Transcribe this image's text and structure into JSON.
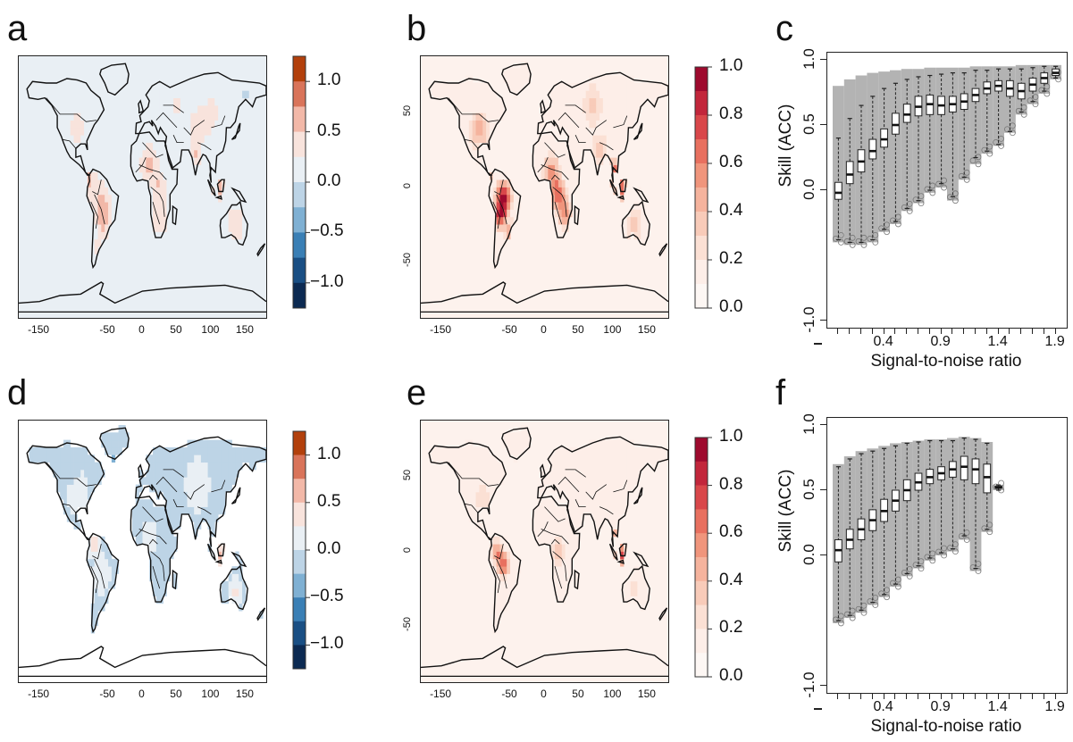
{
  "panels": {
    "a": {
      "letter": "a",
      "type": "map",
      "palette": "diverging",
      "pattern": "a"
    },
    "b": {
      "letter": "b",
      "type": "map",
      "palette": "sequential",
      "pattern": "b"
    },
    "c": {
      "letter": "c",
      "type": "boxplot"
    },
    "d": {
      "letter": "d",
      "type": "map",
      "palette": "diverging",
      "pattern": "d"
    },
    "e": {
      "letter": "e",
      "type": "map",
      "palette": "sequential",
      "pattern": "e"
    },
    "f": {
      "letter": "f",
      "type": "boxplot"
    }
  },
  "map_axes": {
    "lon_ticks": [
      "-150",
      "-50",
      "0",
      "50",
      "100",
      "150"
    ],
    "lat_ticks": [
      "50",
      "0",
      "-50"
    ]
  },
  "colorbars": {
    "diverging": {
      "labels": [
        "1.0",
        "0.5",
        "0.0",
        "−0.5",
        "−1.0"
      ],
      "colors": [
        "#b2400c",
        "#d9745a",
        "#f2b8a8",
        "#f8e3dc",
        "#e9eff4",
        "#bdd4e6",
        "#7fb0d3",
        "#3a7fb5",
        "#1a4f84",
        "#0c2a52"
      ]
    },
    "sequential": {
      "labels": [
        "1.0",
        "0.8",
        "0.6",
        "0.4",
        "0.2",
        "0.0"
      ],
      "colors": [
        "#9e0a2e",
        "#c2263b",
        "#d9474a",
        "#e8705f",
        "#f0957c",
        "#f5b39d",
        "#f8cbb9",
        "#fbe0d4",
        "#fdeee8",
        "#fdf7f4"
      ]
    }
  },
  "chart_data": [
    {
      "type": "boxplot",
      "panel": "c",
      "xlabel": "Signal-to-noise ratio",
      "ylabel": "Skill (ACC)",
      "ylim": [
        -1.0,
        1.0
      ],
      "y_ticks": [
        "1.0",
        "0.5",
        "0.0",
        "-1.0"
      ],
      "x_ticks": [
        "0.4",
        "0.9",
        "1.4",
        "1.9"
      ],
      "x": [
        0.05,
        0.15,
        0.25,
        0.35,
        0.45,
        0.55,
        0.65,
        0.75,
        0.85,
        0.95,
        1.05,
        1.15,
        1.25,
        1.35,
        1.45,
        1.55,
        1.65,
        1.75,
        1.85,
        1.95
      ],
      "q1": [
        -0.07,
        0.05,
        0.14,
        0.24,
        0.33,
        0.43,
        0.52,
        0.57,
        0.58,
        0.58,
        0.6,
        0.62,
        0.68,
        0.74,
        0.76,
        0.72,
        0.7,
        0.76,
        0.82,
        0.88
      ],
      "median": [
        -0.02,
        0.12,
        0.22,
        0.3,
        0.39,
        0.5,
        0.58,
        0.64,
        0.66,
        0.65,
        0.66,
        0.68,
        0.73,
        0.78,
        0.8,
        0.78,
        0.76,
        0.81,
        0.86,
        0.9
      ],
      "q3": [
        0.06,
        0.22,
        0.31,
        0.39,
        0.47,
        0.59,
        0.66,
        0.72,
        0.73,
        0.72,
        0.72,
        0.74,
        0.78,
        0.83,
        0.84,
        0.84,
        0.82,
        0.86,
        0.9,
        0.93
      ],
      "low": [
        -0.38,
        -0.4,
        -0.4,
        -0.38,
        -0.3,
        -0.24,
        -0.14,
        -0.08,
        0.0,
        0.05,
        -0.05,
        0.1,
        0.25,
        0.3,
        0.35,
        0.45,
        0.6,
        0.68,
        0.76,
        0.86
      ],
      "high": [
        0.4,
        0.55,
        0.65,
        0.72,
        0.78,
        0.82,
        0.85,
        0.87,
        0.88,
        0.89,
        0.9,
        0.9,
        0.92,
        0.92,
        0.93,
        0.93,
        0.93,
        0.94,
        0.95,
        0.95
      ],
      "cloud_low": [
        -0.4,
        -0.42,
        -0.42,
        -0.4,
        -0.32,
        -0.26,
        -0.16,
        -0.1,
        -0.02,
        0.02,
        -0.08,
        0.08,
        0.2,
        0.28,
        0.34,
        0.44,
        0.58,
        0.66,
        0.74,
        0.85
      ],
      "cloud_high": [
        0.8,
        0.85,
        0.88,
        0.9,
        0.91,
        0.92,
        0.93,
        0.93,
        0.94,
        0.94,
        0.94,
        0.94,
        0.95,
        0.95,
        0.95,
        0.95,
        0.96,
        0.96,
        0.96,
        0.96
      ]
    },
    {
      "type": "boxplot",
      "panel": "f",
      "xlabel": "Signal-to-noise ratio",
      "ylabel": "Skill (ACC)",
      "ylim": [
        -1.0,
        1.0
      ],
      "y_ticks": [
        "1.0",
        "0.5",
        "0.0",
        "-1.0"
      ],
      "x_ticks": [
        "0.4",
        "0.9",
        "1.4",
        "1.9"
      ],
      "x": [
        0.05,
        0.15,
        0.25,
        0.35,
        0.45,
        0.55,
        0.65,
        0.75,
        0.85,
        0.95,
        1.05,
        1.15,
        1.25,
        1.35,
        1.45
      ],
      "q1": [
        -0.05,
        0.05,
        0.12,
        0.19,
        0.26,
        0.34,
        0.42,
        0.5,
        0.55,
        0.58,
        0.6,
        0.58,
        0.55,
        0.48,
        0.52
      ],
      "median": [
        0.04,
        0.12,
        0.2,
        0.27,
        0.34,
        0.42,
        0.5,
        0.56,
        0.6,
        0.63,
        0.66,
        0.68,
        0.66,
        0.6,
        0.52
      ],
      "q3": [
        0.12,
        0.2,
        0.28,
        0.35,
        0.43,
        0.5,
        0.58,
        0.63,
        0.66,
        0.68,
        0.72,
        0.76,
        0.74,
        0.7,
        0.53
      ],
      "low": [
        -0.5,
        -0.46,
        -0.42,
        -0.36,
        -0.3,
        -0.22,
        -0.14,
        -0.08,
        -0.02,
        0.02,
        0.05,
        0.15,
        -0.1,
        0.2,
        0.5
      ],
      "high": [
        0.68,
        0.74,
        0.78,
        0.8,
        0.82,
        0.84,
        0.86,
        0.87,
        0.88,
        0.88,
        0.88,
        0.9,
        0.89,
        0.86,
        0.54
      ],
      "cloud_low": [
        -0.52,
        -0.48,
        -0.44,
        -0.38,
        -0.32,
        -0.24,
        -0.16,
        -0.1,
        -0.04,
        0.0,
        0.03,
        0.12,
        -0.12,
        0.18,
        0.5
      ],
      "cloud_high": [
        0.7,
        0.76,
        0.8,
        0.82,
        0.84,
        0.86,
        0.87,
        0.88,
        0.89,
        0.89,
        0.9,
        0.91,
        0.9,
        0.87,
        0.54
      ]
    }
  ]
}
